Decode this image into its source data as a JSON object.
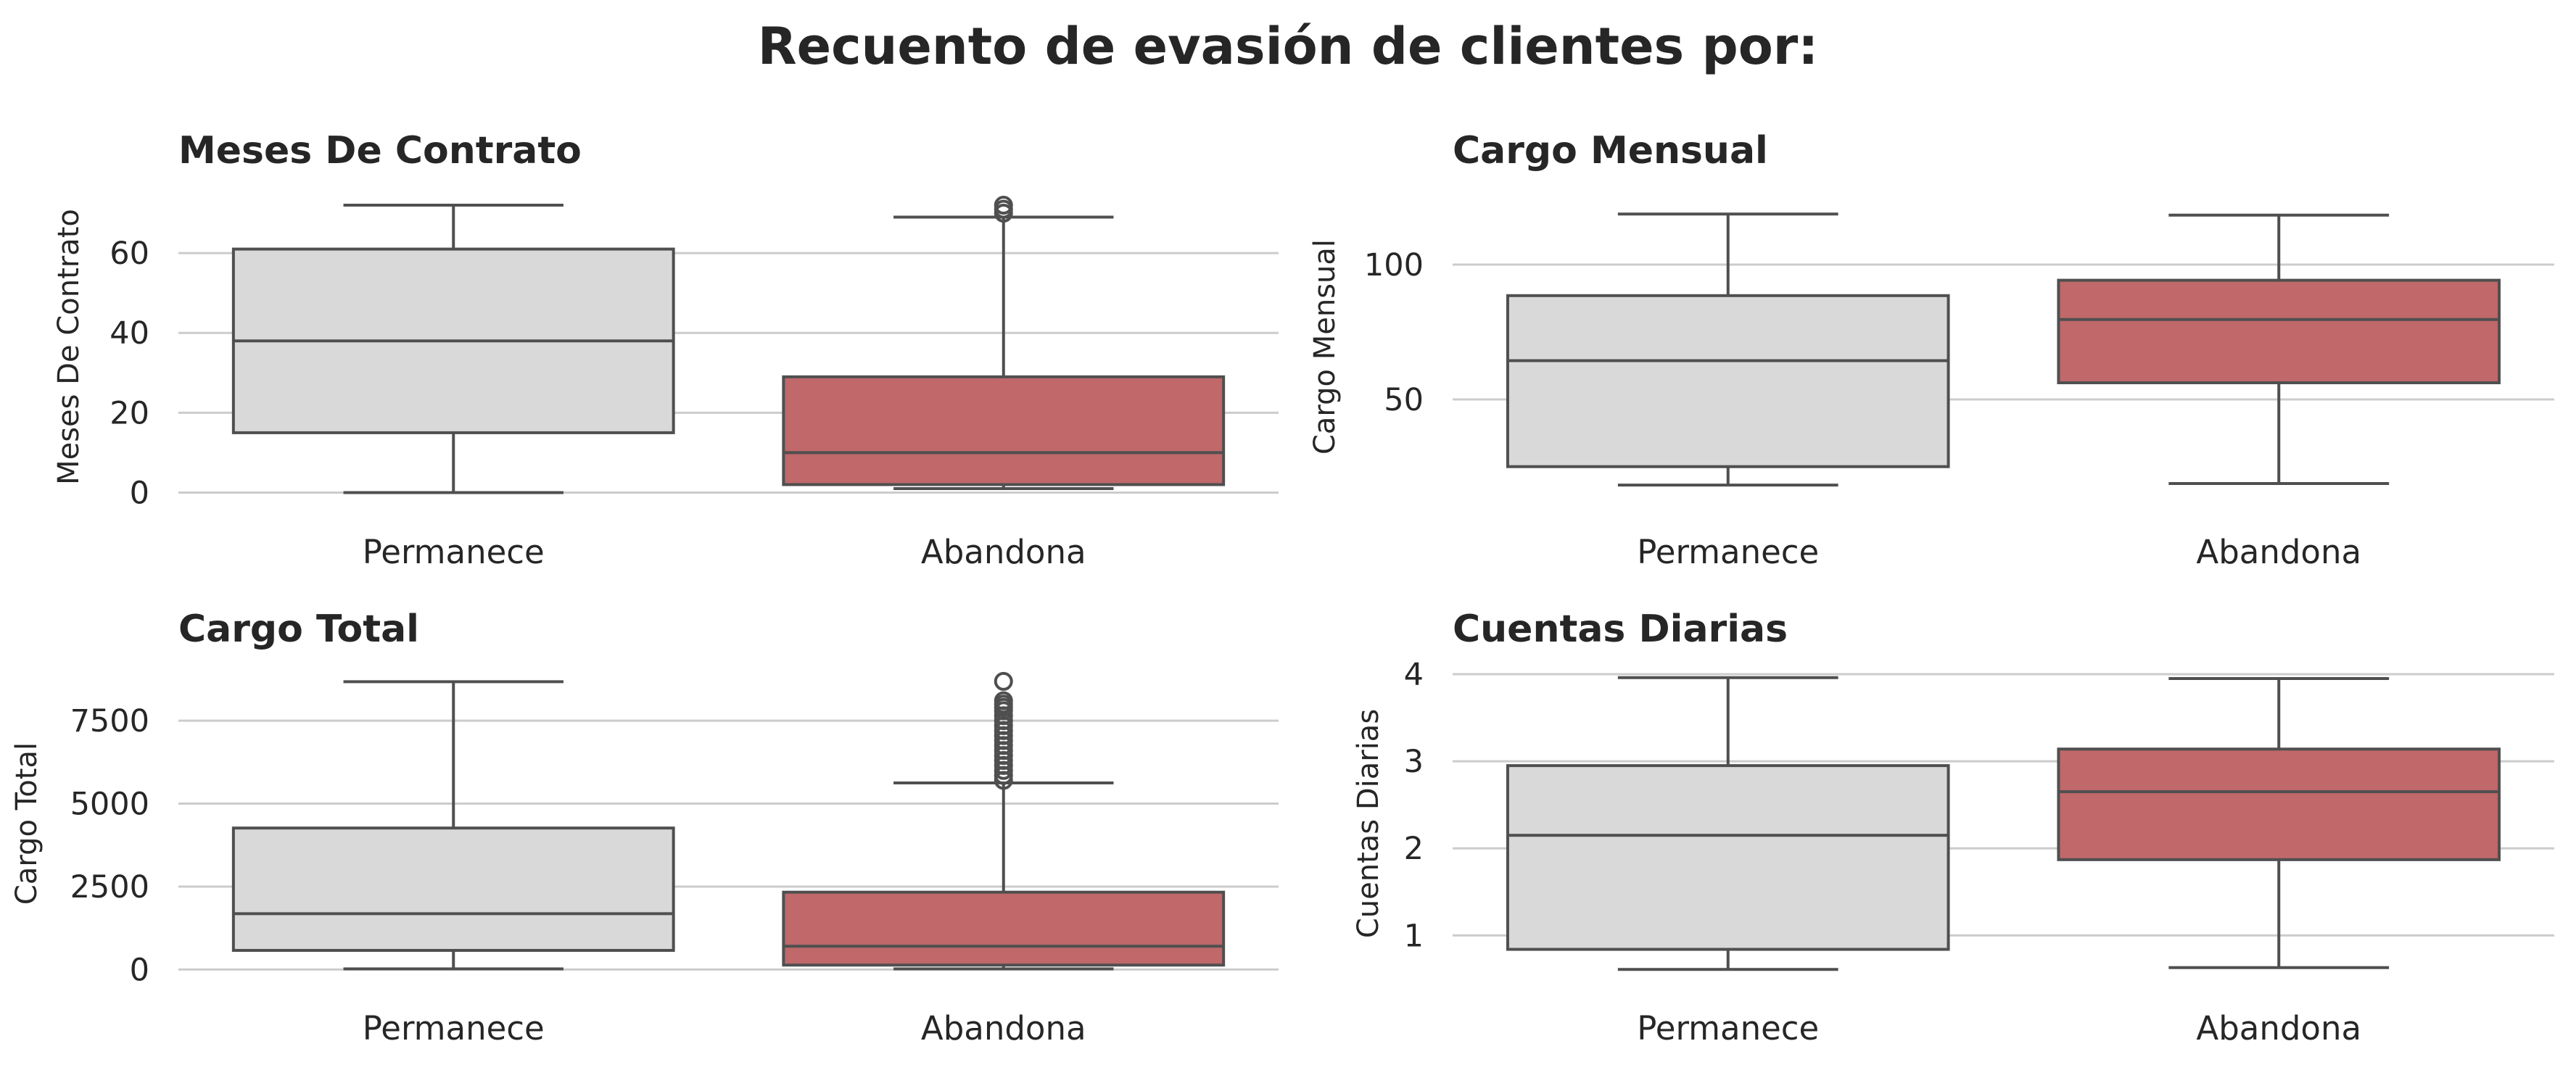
{
  "title": "Recuento de evasión de clientes por:",
  "colors": {
    "permanece": "#d9d9d9",
    "abandona": "#c0686a",
    "line": "#4f4f4f",
    "grid": "#cccccc",
    "text": "#262626"
  },
  "chart_data": [
    {
      "type": "box",
      "title": "Meses De Contrato",
      "ylabel": "Meses De Contrato",
      "categories": [
        "Permanece",
        "Abandona"
      ],
      "ylim": [
        -1,
        74
      ],
      "yticks": [
        0,
        20,
        40,
        60
      ],
      "ytick_labels": [
        "0",
        "20",
        "40",
        "60"
      ],
      "grid": true,
      "boxes": [
        {
          "category": "Permanece",
          "whislo": 0,
          "q1": 15,
          "median": 38,
          "q3": 61,
          "whishi": 72,
          "fliers": []
        },
        {
          "category": "Abandona",
          "whislo": 1,
          "q1": 2,
          "median": 10,
          "q3": 29,
          "whishi": 69,
          "fliers": [
            70,
            71,
            72
          ]
        }
      ]
    },
    {
      "type": "box",
      "title": "Cargo Mensual",
      "ylabel": "Cargo Mensual",
      "categories": [
        "Permanece",
        "Abandona"
      ],
      "ylim": [
        14,
        125
      ],
      "yticks": [
        50,
        100
      ],
      "ytick_labels": [
        "50",
        "100"
      ],
      "grid": true,
      "boxes": [
        {
          "category": "Permanece",
          "whislo": 18.25,
          "q1": 25.1,
          "median": 64.4,
          "q3": 88.5,
          "whishi": 118.75,
          "fliers": []
        },
        {
          "category": "Abandona",
          "whislo": 18.85,
          "q1": 56.2,
          "median": 79.65,
          "q3": 94.2,
          "whishi": 118.35,
          "fliers": []
        }
      ]
    },
    {
      "type": "box",
      "title": "Cargo Total",
      "ylabel": "Cargo Total",
      "categories": [
        "Permanece",
        "Abandona"
      ],
      "ylim": [
        -100,
        8900
      ],
      "yticks": [
        0,
        2500,
        5000,
        7500
      ],
      "ytick_labels": [
        "0",
        "2500",
        "5000",
        "7500"
      ],
      "grid": true,
      "boxes": [
        {
          "category": "Permanece",
          "whislo": 18.8,
          "q1": 577,
          "median": 1683,
          "q3": 4264,
          "whishi": 8672,
          "fliers": []
        },
        {
          "category": "Abandona",
          "whislo": 18.85,
          "q1": 134,
          "median": 704,
          "q3": 2331,
          "whishi": 5624,
          "fliers": [
            5700,
            5850,
            6000,
            6150,
            6300,
            6450,
            6600,
            6750,
            6900,
            7050,
            7200,
            7350,
            7500,
            7650,
            7800,
            7900,
            8000,
            8100,
            8684
          ]
        }
      ]
    },
    {
      "type": "box",
      "title": "Cuentas Diarias",
      "ylabel": "Cuentas Diarias",
      "categories": [
        "Permanece",
        "Abandona"
      ],
      "ylim": [
        0.57,
        4.0
      ],
      "yticks": [
        1,
        2,
        3,
        4
      ],
      "ytick_labels": [
        "1",
        "2",
        "3",
        "4"
      ],
      "grid": true,
      "boxes": [
        {
          "category": "Permanece",
          "whislo": 0.61,
          "q1": 0.84,
          "median": 2.15,
          "q3": 2.95,
          "whishi": 3.96,
          "fliers": []
        },
        {
          "category": "Abandona",
          "whislo": 0.63,
          "q1": 1.87,
          "median": 2.65,
          "q3": 3.14,
          "whishi": 3.95,
          "fliers": []
        }
      ]
    }
  ]
}
